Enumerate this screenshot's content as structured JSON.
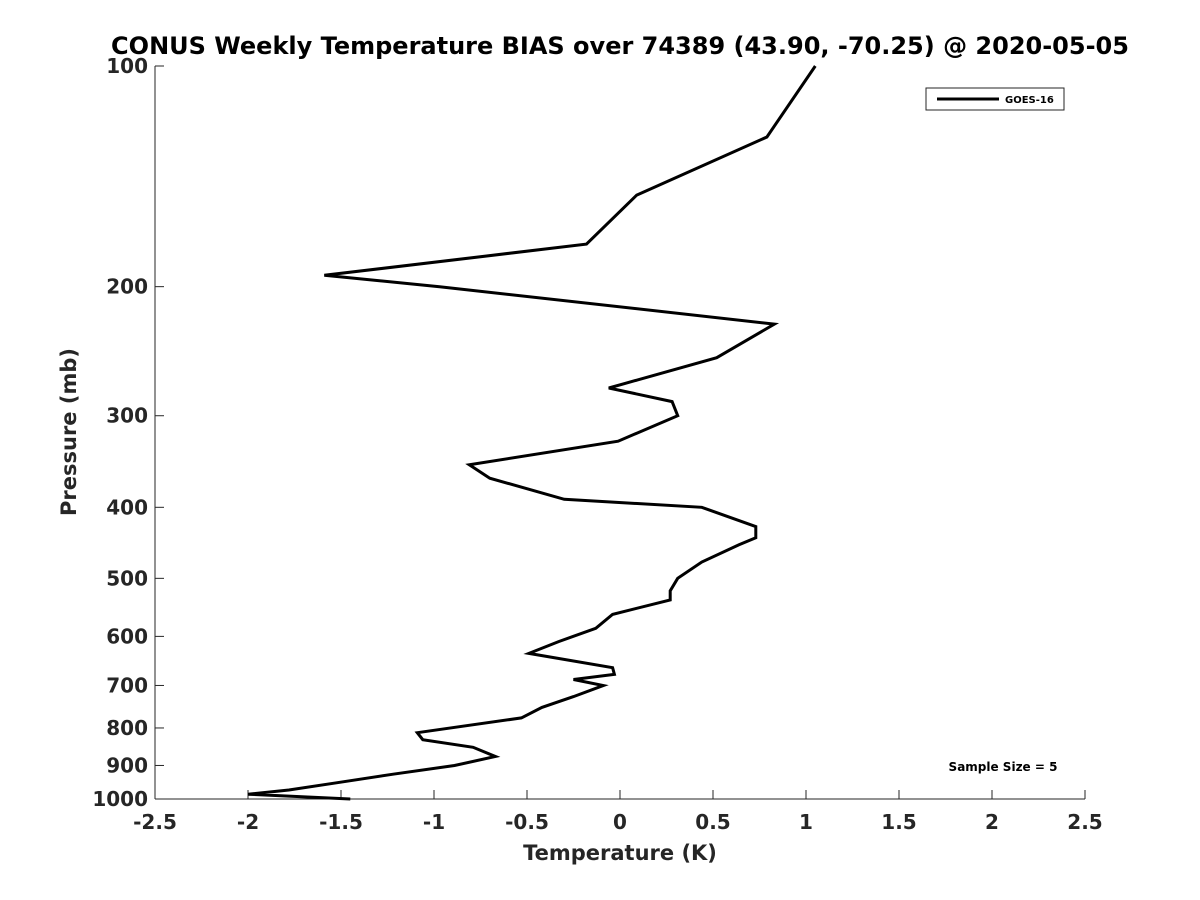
{
  "chart_data": {
    "type": "line",
    "title": "CONUS Weekly Temperature BIAS over 74389 (43.90, -70.25) @ 2020-05-05",
    "xlabel": "Temperature (K)",
    "ylabel": "Pressure (mb)",
    "xlim": [
      -2.5,
      2.5
    ],
    "ylim": [
      100,
      1000
    ],
    "y_scale": "log",
    "y_reversed": true,
    "x_ticks": [
      "-2.5",
      "-2",
      "-1.5",
      "-1",
      "-0.5",
      "0",
      "0.5",
      "1",
      "1.5",
      "2",
      "2.5"
    ],
    "y_ticks": [
      "100",
      "200",
      "300",
      "400",
      "500",
      "600",
      "700",
      "800",
      "900",
      "1000"
    ],
    "grid": false,
    "legend_position": "top-right",
    "annotation": "Sample Size = 5",
    "series": [
      {
        "name": "GOES-16",
        "color": "#000000",
        "points": [
          [
            1.05,
            100
          ],
          [
            0.79,
            125
          ],
          [
            0.09,
            150
          ],
          [
            -0.18,
            175
          ],
          [
            -1.59,
            193
          ],
          [
            -0.97,
            200
          ],
          [
            0.83,
            225
          ],
          [
            0.52,
            250
          ],
          [
            -0.06,
            275
          ],
          [
            0.28,
            287
          ],
          [
            0.31,
            300
          ],
          [
            -0.01,
            325
          ],
          [
            -0.81,
            350
          ],
          [
            -0.7,
            365
          ],
          [
            -0.3,
            390
          ],
          [
            0.44,
            400
          ],
          [
            0.73,
            425
          ],
          [
            0.73,
            440
          ],
          [
            0.64,
            450
          ],
          [
            0.44,
            475
          ],
          [
            0.31,
            500
          ],
          [
            0.27,
            520
          ],
          [
            0.27,
            535
          ],
          [
            -0.04,
            560
          ],
          [
            -0.13,
            585
          ],
          [
            -0.33,
            610
          ],
          [
            -0.49,
            633
          ],
          [
            -0.04,
            662
          ],
          [
            -0.03,
            676
          ],
          [
            -0.25,
            687
          ],
          [
            -0.09,
            700
          ],
          [
            -0.25,
            725
          ],
          [
            -0.42,
            750
          ],
          [
            -0.53,
            775
          ],
          [
            -1.09,
            812
          ],
          [
            -1.06,
            830
          ],
          [
            -0.79,
            850
          ],
          [
            -0.67,
            875
          ],
          [
            -0.89,
            900
          ],
          [
            -1.22,
            925
          ],
          [
            -1.52,
            950
          ],
          [
            -1.78,
            972
          ],
          [
            -2.0,
            985
          ],
          [
            -1.45,
            1000
          ]
        ]
      }
    ]
  }
}
